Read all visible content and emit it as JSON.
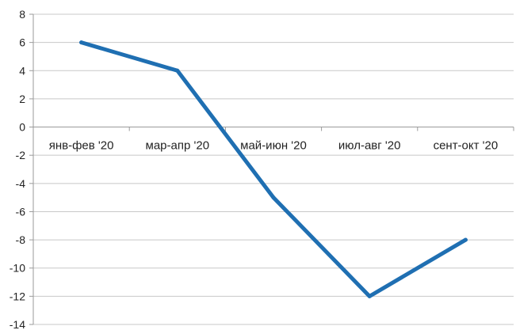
{
  "chart_data": {
    "type": "line",
    "categories": [
      "янв-фев '20",
      "мар-апр '20",
      "май-июн '20",
      "июл-авг '20",
      "сент-окт '20"
    ],
    "series": [
      {
        "values": [
          6,
          4,
          -5,
          -12,
          -8
        ],
        "color": "#1f6fb2"
      }
    ],
    "ylim": [
      -14,
      8
    ],
    "yticks": [
      8,
      6,
      4,
      2,
      0,
      -2,
      -4,
      -6,
      -8,
      -10,
      -12,
      -14
    ],
    "ytick_labels": [
      "8",
      "6",
      "4",
      "2",
      "0",
      "-2",
      "-4",
      "-6",
      "-8",
      "-10",
      "-12",
      "-14"
    ],
    "grid": "horizontal",
    "gridline_color": "#c8c8c8",
    "axis_color": "#9a9a9a"
  }
}
